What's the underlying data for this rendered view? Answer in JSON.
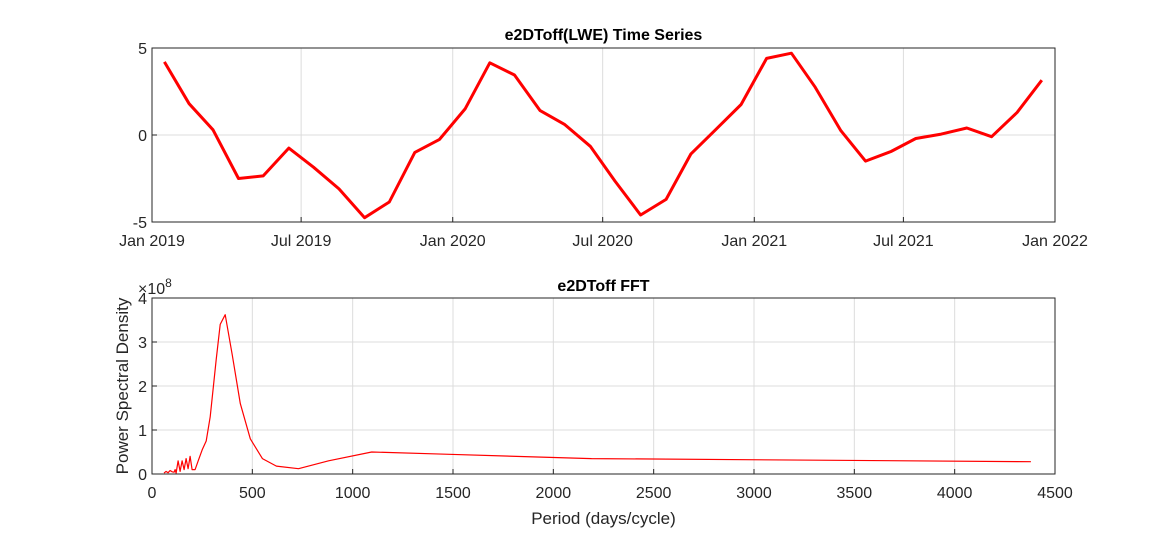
{
  "chart_data": [
    {
      "type": "line",
      "title": "e2DToff(LWE) Time Series",
      "xlabel": "",
      "ylabel": "",
      "xlim": [
        "2019-01-01",
        "2022-01-01"
      ],
      "ylim": [
        -5,
        5
      ],
      "grid": true,
      "line_color": "#ff0000",
      "x_ticks": [
        "Jan 2019",
        "Jul 2019",
        "Jan 2020",
        "Jul 2020",
        "Jan 2021",
        "Jul 2021",
        "Jan 2022"
      ],
      "y_ticks": [
        "-5",
        "0",
        "5"
      ],
      "x": [
        "2019-01-16",
        "2019-02-15",
        "2019-03-16",
        "2019-04-16",
        "2019-05-16",
        "2019-06-16",
        "2019-07-16",
        "2019-08-16",
        "2019-09-16",
        "2019-10-16",
        "2019-11-16",
        "2019-12-16",
        "2020-01-16",
        "2020-02-15",
        "2020-03-16",
        "2020-04-16",
        "2020-05-16",
        "2020-06-16",
        "2020-07-16",
        "2020-08-16",
        "2020-09-16",
        "2020-10-16",
        "2020-11-16",
        "2020-12-16",
        "2021-01-16",
        "2021-02-15",
        "2021-03-16",
        "2021-04-16",
        "2021-05-16",
        "2021-06-16",
        "2021-07-16",
        "2021-08-16",
        "2021-09-16",
        "2021-10-16",
        "2021-11-16",
        "2021-12-16"
      ],
      "y": [
        4.2,
        1.8,
        0.3,
        -2.5,
        -2.35,
        -0.75,
        -1.85,
        -3.1,
        -4.75,
        -3.85,
        -1.0,
        -0.25,
        1.5,
        4.15,
        3.45,
        1.4,
        0.6,
        -0.65,
        -2.65,
        -4.6,
        -3.7,
        -1.1,
        0.35,
        1.75,
        4.4,
        4.7,
        2.75,
        0.25,
        -1.5,
        -0.95,
        -0.2,
        0.05,
        0.4,
        -0.1,
        1.3,
        3.15
      ]
    },
    {
      "type": "line",
      "title": "e2DToff FFT",
      "xlabel": "Period (days/cycle)",
      "ylabel": "Power Spectral Density",
      "xlim": [
        0,
        4500
      ],
      "ylim": [
        0,
        4
      ],
      "y_exponent_label": "×10",
      "y_exponent": "8",
      "grid": true,
      "line_color": "#ff0000",
      "x_ticks": [
        "0",
        "500",
        "1000",
        "1500",
        "2000",
        "2500",
        "3000",
        "3500",
        "4000",
        "4500"
      ],
      "y_ticks": [
        "0",
        "1",
        "2",
        "3",
        "4"
      ],
      "x": [
        60,
        70,
        80,
        90,
        100,
        110,
        115,
        120,
        130,
        140,
        150,
        160,
        170,
        180,
        190,
        200,
        215,
        230,
        250,
        270,
        290,
        320,
        340,
        365,
        400,
        440,
        490,
        550,
        620,
        730,
        880,
        1095,
        1460,
        2190,
        4380
      ],
      "y": [
        0.02,
        0.06,
        0.03,
        0.08,
        0.05,
        0.04,
        0.1,
        0.02,
        0.3,
        0.06,
        0.3,
        0.1,
        0.35,
        0.12,
        0.4,
        0.1,
        0.1,
        0.3,
        0.55,
        0.75,
        1.3,
        2.6,
        3.4,
        3.62,
        2.7,
        1.6,
        0.8,
        0.35,
        0.18,
        0.12,
        0.3,
        0.5,
        0.45,
        0.35,
        0.28
      ]
    }
  ]
}
